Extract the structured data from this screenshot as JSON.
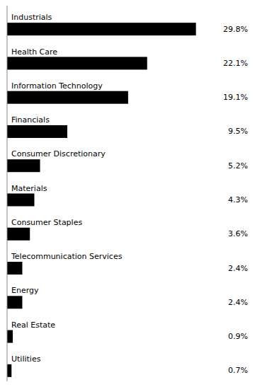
{
  "chart_data": {
    "type": "bar",
    "orientation": "horizontal",
    "categories": [
      "Industrials",
      "Health Care",
      "Information Technology",
      "Financials",
      "Consumer Discretionary",
      "Materials",
      "Consumer Staples",
      "Telecommunication Services",
      "Energy",
      "Real Estate",
      "Utilities"
    ],
    "values": [
      29.8,
      22.1,
      19.1,
      9.5,
      5.2,
      4.3,
      3.6,
      2.4,
      2.4,
      0.9,
      0.7
    ],
    "value_labels": [
      "29.8%",
      "22.1%",
      "19.1%",
      "9.5%",
      "5.2%",
      "4.3%",
      "3.6%",
      "2.4%",
      "2.4%",
      "0.9%",
      "0.7%"
    ],
    "color": "#000000",
    "xlim": [
      0,
      38
    ],
    "data_labels": true,
    "tick_labels": false
  }
}
